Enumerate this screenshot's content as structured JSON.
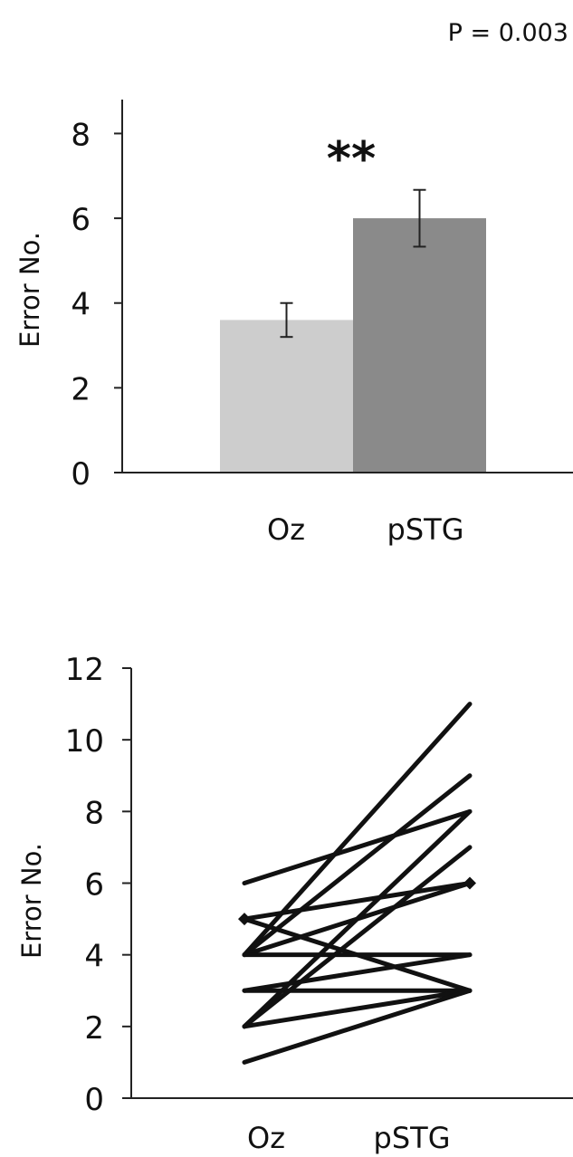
{
  "p_value_label": "P = 0.003",
  "significance_label": "**",
  "chart_data": [
    {
      "type": "bar",
      "ylabel": "Error No.",
      "xlabel": "",
      "ylim": [
        0,
        8.8
      ],
      "yticks": [
        0,
        2,
        4,
        6,
        8
      ],
      "categories": [
        "Oz",
        "pSTG"
      ],
      "values": [
        3.6,
        6.0
      ],
      "error": [
        0.4,
        0.67
      ],
      "colors": [
        "#cdcdcd",
        "#8a8a8a"
      ],
      "grid": false
    },
    {
      "type": "line",
      "ylabel": "Error No.",
      "xlabel": "",
      "ylim": [
        0,
        12
      ],
      "yticks": [
        0,
        2,
        4,
        6,
        8,
        10,
        12
      ],
      "categories": [
        "Oz",
        "pSTG"
      ],
      "series": [
        {
          "values": [
            6,
            8
          ]
        },
        {
          "values": [
            5,
            6
          ]
        },
        {
          "values": [
            5,
            3
          ]
        },
        {
          "values": [
            4,
            11
          ]
        },
        {
          "values": [
            4,
            9
          ]
        },
        {
          "values": [
            4,
            6
          ]
        },
        {
          "values": [
            4,
            4
          ]
        },
        {
          "values": [
            3,
            3
          ]
        },
        {
          "values": [
            3,
            4
          ]
        },
        {
          "values": [
            2,
            8
          ]
        },
        {
          "values": [
            2,
            7
          ]
        },
        {
          "values": [
            2,
            3
          ]
        },
        {
          "values": [
            1,
            3
          ]
        }
      ],
      "grid": false
    }
  ]
}
